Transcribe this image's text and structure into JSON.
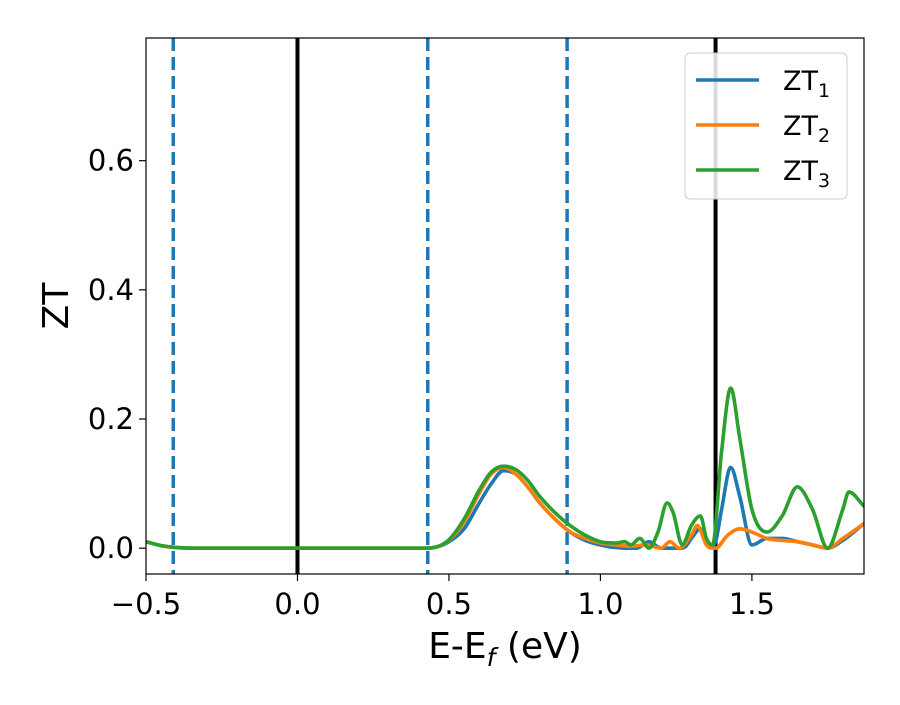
{
  "chart_data": {
    "type": "line",
    "xlabel_main": "E-E",
    "xlabel_sub": "f",
    "xlabel_unit": " (eV)",
    "ylabel": "ZT",
    "xlim": [
      -0.5,
      1.87
    ],
    "ylim": [
      -0.04,
      0.79
    ],
    "xticks": [
      -0.5,
      0.0,
      0.5,
      1.0,
      1.5
    ],
    "xtick_labels": [
      "−0.5",
      "0.0",
      "0.5",
      "1.0",
      "1.5"
    ],
    "yticks": [
      0.0,
      0.2,
      0.4,
      0.6
    ],
    "ytick_labels": [
      "0.0",
      "0.2",
      "0.4",
      "0.6"
    ],
    "grid": false,
    "legend_position": "top-right",
    "vlines": [
      {
        "x": -0.41,
        "style": "dashed",
        "color": "#1f77b4"
      },
      {
        "x": 0.0,
        "style": "solid",
        "color": "#000000"
      },
      {
        "x": 0.43,
        "style": "dashed",
        "color": "#1f77b4"
      },
      {
        "x": 0.89,
        "style": "dashed",
        "color": "#1f77b4"
      },
      {
        "x": 1.38,
        "style": "solid",
        "color": "#000000"
      }
    ],
    "series": [
      {
        "name": "ZT",
        "subscript": "1",
        "color": "#1f77b4",
        "x": [
          -0.5,
          -0.45,
          -0.4,
          -0.3,
          0.0,
          0.3,
          0.42,
          0.46,
          0.5,
          0.55,
          0.6,
          0.64,
          0.68,
          0.72,
          0.76,
          0.8,
          0.85,
          0.9,
          0.95,
          1.0,
          1.05,
          1.08,
          1.12,
          1.16,
          1.2,
          1.25,
          1.28,
          1.3,
          1.33,
          1.36,
          1.38,
          1.4,
          1.43,
          1.46,
          1.5,
          1.55,
          1.6,
          1.65,
          1.7,
          1.75,
          1.8,
          1.87
        ],
        "y": [
          0.01,
          0.004,
          0.001,
          0.0,
          0.0,
          0.0,
          0.0,
          0.002,
          0.01,
          0.03,
          0.07,
          0.1,
          0.12,
          0.115,
          0.095,
          0.07,
          0.045,
          0.025,
          0.012,
          0.005,
          0.001,
          0.0,
          0.0,
          0.01,
          0.0,
          0.0,
          0.002,
          0.015,
          0.03,
          0.005,
          0.01,
          0.06,
          0.125,
          0.08,
          0.005,
          0.015,
          0.015,
          0.01,
          0.005,
          0.0,
          0.012,
          0.038
        ]
      },
      {
        "name": "ZT",
        "subscript": "2",
        "color": "#ff7f0e",
        "x": [
          -0.5,
          -0.45,
          -0.4,
          -0.3,
          0.0,
          0.3,
          0.42,
          0.46,
          0.5,
          0.55,
          0.6,
          0.64,
          0.68,
          0.72,
          0.76,
          0.8,
          0.85,
          0.9,
          0.95,
          1.0,
          1.05,
          1.1,
          1.15,
          1.2,
          1.23,
          1.26,
          1.3,
          1.32,
          1.35,
          1.38,
          1.42,
          1.46,
          1.5,
          1.55,
          1.6,
          1.65,
          1.7,
          1.75,
          1.8,
          1.87
        ],
        "y": [
          0.01,
          0.004,
          0.001,
          0.0,
          0.0,
          0.0,
          0.0,
          0.002,
          0.012,
          0.04,
          0.085,
          0.115,
          0.125,
          0.115,
          0.095,
          0.07,
          0.045,
          0.025,
          0.015,
          0.008,
          0.005,
          0.003,
          0.005,
          0.0,
          0.01,
          0.0,
          0.02,
          0.035,
          0.005,
          0.0,
          0.02,
          0.03,
          0.025,
          0.015,
          0.012,
          0.01,
          0.005,
          0.0,
          0.015,
          0.038
        ]
      },
      {
        "name": "ZT",
        "subscript": "3",
        "color": "#2ca02c",
        "x": [
          -0.5,
          -0.45,
          -0.4,
          -0.3,
          0.0,
          0.3,
          0.42,
          0.46,
          0.5,
          0.55,
          0.6,
          0.64,
          0.68,
          0.72,
          0.76,
          0.8,
          0.85,
          0.9,
          0.95,
          1.0,
          1.05,
          1.08,
          1.1,
          1.13,
          1.16,
          1.19,
          1.22,
          1.24,
          1.27,
          1.3,
          1.33,
          1.35,
          1.37,
          1.4,
          1.43,
          1.46,
          1.5,
          1.55,
          1.6,
          1.65,
          1.7,
          1.75,
          1.8,
          1.82,
          1.87
        ],
        "y": [
          0.01,
          0.004,
          0.001,
          0.0,
          0.0,
          0.0,
          0.0,
          0.002,
          0.013,
          0.045,
          0.09,
          0.118,
          0.127,
          0.122,
          0.105,
          0.08,
          0.055,
          0.035,
          0.02,
          0.01,
          0.008,
          0.01,
          0.005,
          0.015,
          0.0,
          0.025,
          0.07,
          0.055,
          0.005,
          0.035,
          0.05,
          0.015,
          0.005,
          0.15,
          0.248,
          0.17,
          0.06,
          0.025,
          0.05,
          0.095,
          0.06,
          0.0,
          0.06,
          0.087,
          0.065
        ]
      }
    ]
  }
}
